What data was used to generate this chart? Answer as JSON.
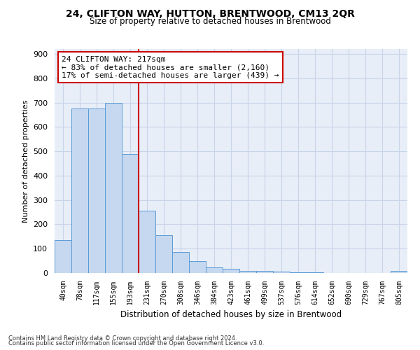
{
  "title": "24, CLIFTON WAY, HUTTON, BRENTWOOD, CM13 2QR",
  "subtitle": "Size of property relative to detached houses in Brentwood",
  "xlabel": "Distribution of detached houses by size in Brentwood",
  "ylabel": "Number of detached properties",
  "bar_labels": [
    "40sqm",
    "78sqm",
    "117sqm",
    "155sqm",
    "193sqm",
    "231sqm",
    "270sqm",
    "308sqm",
    "346sqm",
    "384sqm",
    "423sqm",
    "461sqm",
    "499sqm",
    "537sqm",
    "576sqm",
    "614sqm",
    "652sqm",
    "690sqm",
    "729sqm",
    "767sqm",
    "805sqm"
  ],
  "bar_values": [
    135,
    675,
    675,
    700,
    490,
    255,
    155,
    87,
    50,
    22,
    18,
    10,
    8,
    7,
    3,
    2,
    1,
    1,
    1,
    1,
    8
  ],
  "bar_color": "#c5d8f0",
  "bar_edgecolor": "#5b9bd5",
  "vline_x": 4.5,
  "vline_color": "#cc0000",
  "annotation_text": "24 CLIFTON WAY: 217sqm\n← 83% of detached houses are smaller (2,160)\n17% of semi-detached houses are larger (439) →",
  "annotation_box_color": "#ffffff",
  "annotation_box_edgecolor": "#cc0000",
  "ylim": [
    0,
    920
  ],
  "yticks": [
    0,
    100,
    200,
    300,
    400,
    500,
    600,
    700,
    800,
    900
  ],
  "grid_color": "#c8d4e8",
  "bg_color": "#e8eef8",
  "footer1": "Contains HM Land Registry data © Crown copyright and database right 2024.",
  "footer2": "Contains public sector information licensed under the Open Government Licence v3.0."
}
